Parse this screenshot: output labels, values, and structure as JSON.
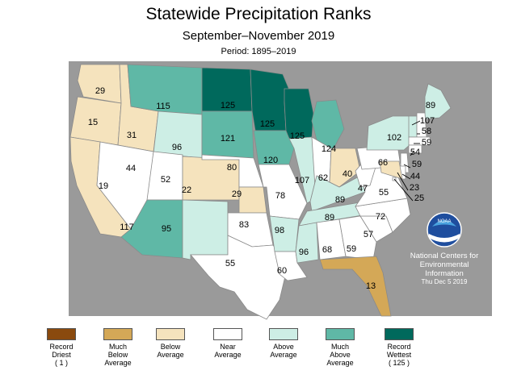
{
  "title": "Statewide Precipitation Ranks",
  "subtitle": "September–November 2019",
  "period": "Period: 1895–2019",
  "colors": {
    "ocean": "#9a9a9a",
    "record_driest": "#8a4a0e",
    "much_below": "#d4a857",
    "below": "#f5e3bd",
    "near": "#ffffff",
    "above": "#cdeee5",
    "much_above": "#5fb8a6",
    "record_wettest": "#00695c"
  },
  "legend": [
    {
      "label": "Record\nDriest\n( 1 )",
      "color_key": "record_driest"
    },
    {
      "label": "Much\nBelow\nAverage",
      "color_key": "much_below"
    },
    {
      "label": "Below\nAverage",
      "color_key": "below"
    },
    {
      "label": "Near\nAverage",
      "color_key": "near"
    },
    {
      "label": "Above\nAverage",
      "color_key": "above"
    },
    {
      "label": "Much\nAbove\nAverage",
      "color_key": "much_above"
    },
    {
      "label": "Record\nWettest\n( 125 )",
      "color_key": "record_wettest"
    }
  ],
  "states": [
    {
      "abbr": "WA",
      "rank": "29",
      "category": "below"
    },
    {
      "abbr": "OR",
      "rank": "15",
      "category": "below"
    },
    {
      "abbr": "CA",
      "rank": "19",
      "category": "below"
    },
    {
      "abbr": "ID",
      "rank": "31",
      "category": "below"
    },
    {
      "abbr": "NV",
      "rank": "44",
      "category": "near"
    },
    {
      "abbr": "MT",
      "rank": "115",
      "category": "much_above"
    },
    {
      "abbr": "WY",
      "rank": "96",
      "category": "above"
    },
    {
      "abbr": "UT",
      "rank": "52",
      "category": "near"
    },
    {
      "abbr": "CO",
      "rank": "22",
      "category": "below"
    },
    {
      "abbr": "AZ",
      "rank": "117",
      "category": "much_above"
    },
    {
      "abbr": "NM",
      "rank": "95",
      "category": "above"
    },
    {
      "abbr": "ND",
      "rank": "125",
      "category": "record_wettest"
    },
    {
      "abbr": "SD",
      "rank": "121",
      "category": "much_above"
    },
    {
      "abbr": "NE",
      "rank": "80",
      "category": "near"
    },
    {
      "abbr": "KS",
      "rank": "29",
      "category": "below"
    },
    {
      "abbr": "OK",
      "rank": "83",
      "category": "near"
    },
    {
      "abbr": "TX",
      "rank": "55",
      "category": "near"
    },
    {
      "abbr": "MN",
      "rank": "125",
      "category": "record_wettest"
    },
    {
      "abbr": "IA",
      "rank": "120",
      "category": "much_above"
    },
    {
      "abbr": "MO",
      "rank": "78",
      "category": "near"
    },
    {
      "abbr": "AR",
      "rank": "98",
      "category": "above"
    },
    {
      "abbr": "LA",
      "rank": "60",
      "category": "near"
    },
    {
      "abbr": "WI",
      "rank": "125",
      "category": "record_wettest"
    },
    {
      "abbr": "IL",
      "rank": "107",
      "category": "above"
    },
    {
      "abbr": "MI",
      "rank": "124",
      "category": "much_above"
    },
    {
      "abbr": "IN",
      "rank": "62",
      "category": "near"
    },
    {
      "abbr": "OH",
      "rank": "40",
      "category": "below"
    },
    {
      "abbr": "KY",
      "rank": "89",
      "category": "above"
    },
    {
      "abbr": "TN",
      "rank": "89",
      "category": "above"
    },
    {
      "abbr": "MS",
      "rank": "96",
      "category": "above"
    },
    {
      "abbr": "AL",
      "rank": "68",
      "category": "near"
    },
    {
      "abbr": "GA",
      "rank": "59",
      "category": "near"
    },
    {
      "abbr": "FL",
      "rank": "13",
      "category": "much_below"
    },
    {
      "abbr": "SC",
      "rank": "57",
      "category": "near"
    },
    {
      "abbr": "NC",
      "rank": "72",
      "category": "near"
    },
    {
      "abbr": "VA",
      "rank": "55",
      "category": "near"
    },
    {
      "abbr": "WV",
      "rank": "47",
      "category": "near"
    },
    {
      "abbr": "PA",
      "rank": "66",
      "category": "near"
    },
    {
      "abbr": "NY",
      "rank": "102",
      "category": "above"
    },
    {
      "abbr": "ME",
      "rank": "89",
      "category": "above"
    },
    {
      "abbr": "VT",
      "rank": "107",
      "category": "above"
    },
    {
      "abbr": "NH",
      "rank": "58",
      "category": "near"
    },
    {
      "abbr": "MA",
      "rank": "59",
      "category": "near"
    },
    {
      "abbr": "CT",
      "rank": "54",
      "category": "near"
    },
    {
      "abbr": "NJ",
      "rank": "59",
      "category": "near"
    },
    {
      "abbr": "DE",
      "rank": "44",
      "category": "near"
    },
    {
      "abbr": "MD",
      "rank": "23",
      "category": "below"
    },
    {
      "abbr": "DC",
      "rank": "25",
      "category": "near"
    }
  ],
  "noaa": {
    "logo_text": "NOAA",
    "org_line1": "National Centers for",
    "org_line2": "Environmental",
    "org_line3": "Information",
    "date": "Thu Dec  5 2019"
  }
}
